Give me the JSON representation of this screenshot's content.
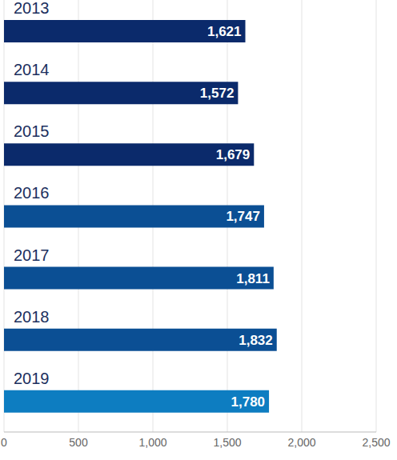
{
  "chart_data": {
    "type": "bar",
    "orientation": "horizontal",
    "categories": [
      "2013",
      "2014",
      "2015",
      "2016",
      "2017",
      "2018",
      "2019"
    ],
    "values": [
      1621,
      1572,
      1679,
      1747,
      1811,
      1832,
      1780
    ],
    "value_labels": [
      "1,621",
      "1,572",
      "1,679",
      "1,747",
      "1,811",
      "1,832",
      "1,780"
    ],
    "data_labels": true,
    "colors": [
      "#0b2a6b",
      "#0b2a6b",
      "#0b2a6b",
      "#0b4f94",
      "#0b4f94",
      "#0b4f94",
      "#0d7dc1"
    ],
    "xlim": [
      0,
      2500
    ],
    "xticks": [
      0,
      500,
      {
        "value": 1000,
        "label": "1,000"
      },
      {
        "value": 1500,
        "label": "1,500"
      },
      {
        "value": 2000,
        "label": "2,000"
      },
      {
        "value": 2500,
        "label": "2,500"
      }
    ],
    "grid": true
  }
}
